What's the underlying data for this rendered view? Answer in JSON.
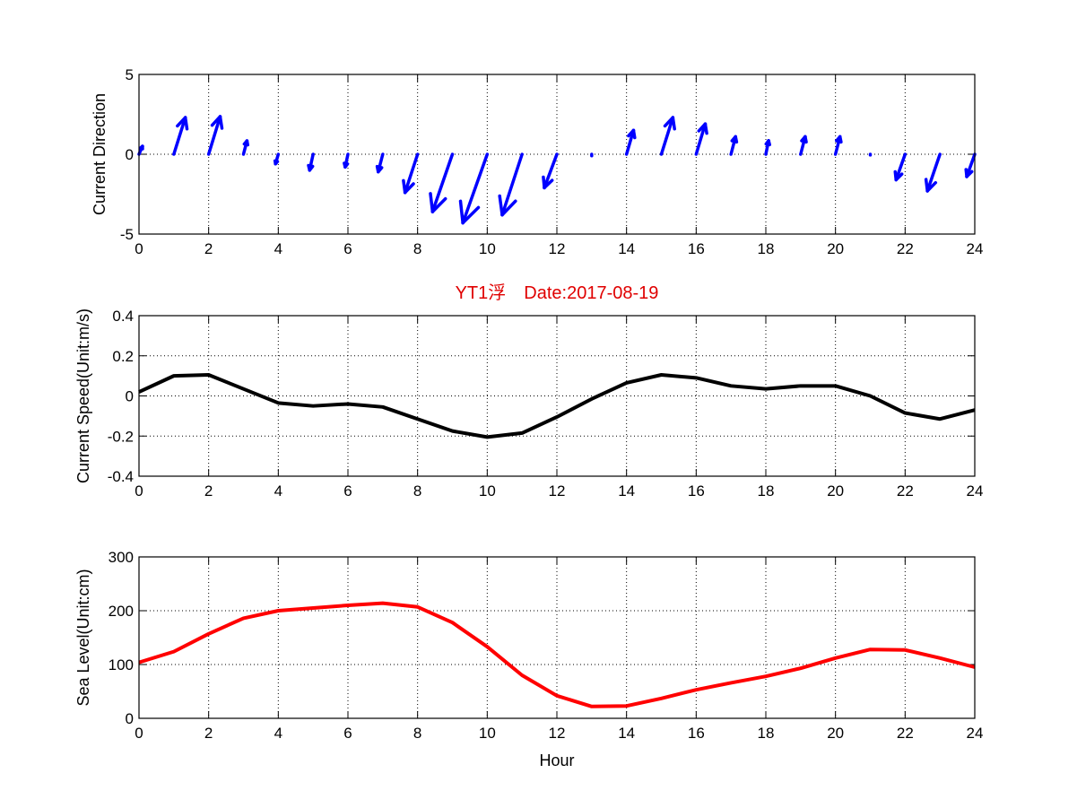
{
  "title": "YT1浮　Date:2017-08-19",
  "chart_data": [
    {
      "type": "quiver",
      "ylabel": "Current Direction",
      "xlabel": "",
      "xlim": [
        0,
        24
      ],
      "ylim": [
        -5,
        5
      ],
      "xticks": [
        0,
        2,
        4,
        6,
        8,
        10,
        12,
        14,
        16,
        18,
        20,
        22,
        24
      ],
      "yticks": [
        -5,
        0,
        5
      ],
      "grid": true,
      "color": "#0000ff",
      "x": [
        0,
        1,
        2,
        3,
        4,
        5,
        6,
        7,
        8,
        9,
        10,
        11,
        12,
        13,
        14,
        15,
        16,
        17,
        18,
        19,
        20,
        21,
        22,
        23,
        24
      ],
      "u": [
        0.1,
        0.33,
        0.33,
        0.1,
        -0.08,
        -0.1,
        -0.08,
        -0.13,
        -0.36,
        -0.57,
        -0.7,
        -0.57,
        -0.36,
        0,
        0.2,
        0.33,
        0.26,
        0.13,
        0.08,
        0.13,
        0.13,
        0,
        -0.26,
        -0.36,
        -0.23
      ],
      "v": [
        0.5,
        2.3,
        2.36,
        0.84,
        -0.6,
        -1.0,
        -0.8,
        -1.1,
        -2.4,
        -3.6,
        -4.3,
        -3.8,
        -2.1,
        -0.1,
        1.5,
        2.3,
        1.9,
        1.1,
        0.85,
        1.1,
        1.1,
        -0.05,
        -1.6,
        -2.3,
        -1.4
      ]
    },
    {
      "type": "line",
      "ylabel": "Current Speed(Unit:m/s)",
      "xlabel": "",
      "xlim": [
        0,
        24
      ],
      "ylim": [
        -0.4,
        0.4
      ],
      "xticks": [
        0,
        2,
        4,
        6,
        8,
        10,
        12,
        14,
        16,
        18,
        20,
        22,
        24
      ],
      "yticks": [
        -0.4,
        -0.2,
        0,
        0.2,
        0.4
      ],
      "grid": true,
      "color": "#000000",
      "x": [
        0,
        1,
        2,
        3,
        4,
        5,
        6,
        7,
        8,
        9,
        10,
        11,
        12,
        13,
        14,
        15,
        16,
        17,
        18,
        19,
        20,
        21,
        22,
        23,
        24
      ],
      "y": [
        0.02,
        0.1,
        0.105,
        0.035,
        -0.035,
        -0.05,
        -0.04,
        -0.055,
        -0.115,
        -0.175,
        -0.205,
        -0.185,
        -0.105,
        -0.015,
        0.065,
        0.105,
        0.09,
        0.05,
        0.035,
        0.05,
        0.05,
        0.0,
        -0.085,
        -0.115,
        -0.07
      ]
    },
    {
      "type": "line",
      "ylabel": "Sea Level(Unit:cm)",
      "xlabel": "Hour",
      "xlim": [
        0,
        24
      ],
      "ylim": [
        0,
        300
      ],
      "xticks": [
        0,
        2,
        4,
        6,
        8,
        10,
        12,
        14,
        16,
        18,
        20,
        22,
        24
      ],
      "yticks": [
        0,
        100,
        200,
        300
      ],
      "grid": true,
      "color": "#ff0000",
      "x": [
        0,
        1,
        2,
        3,
        4,
        5,
        6,
        7,
        8,
        9,
        10,
        11,
        12,
        13,
        14,
        15,
        16,
        17,
        18,
        19,
        20,
        21,
        22,
        23,
        24
      ],
      "y": [
        104,
        124,
        157,
        186,
        200,
        205,
        210,
        214,
        207,
        178,
        133,
        80,
        42,
        22,
        23,
        37,
        53,
        66,
        78,
        93,
        112,
        128,
        127,
        112,
        95
      ]
    }
  ]
}
